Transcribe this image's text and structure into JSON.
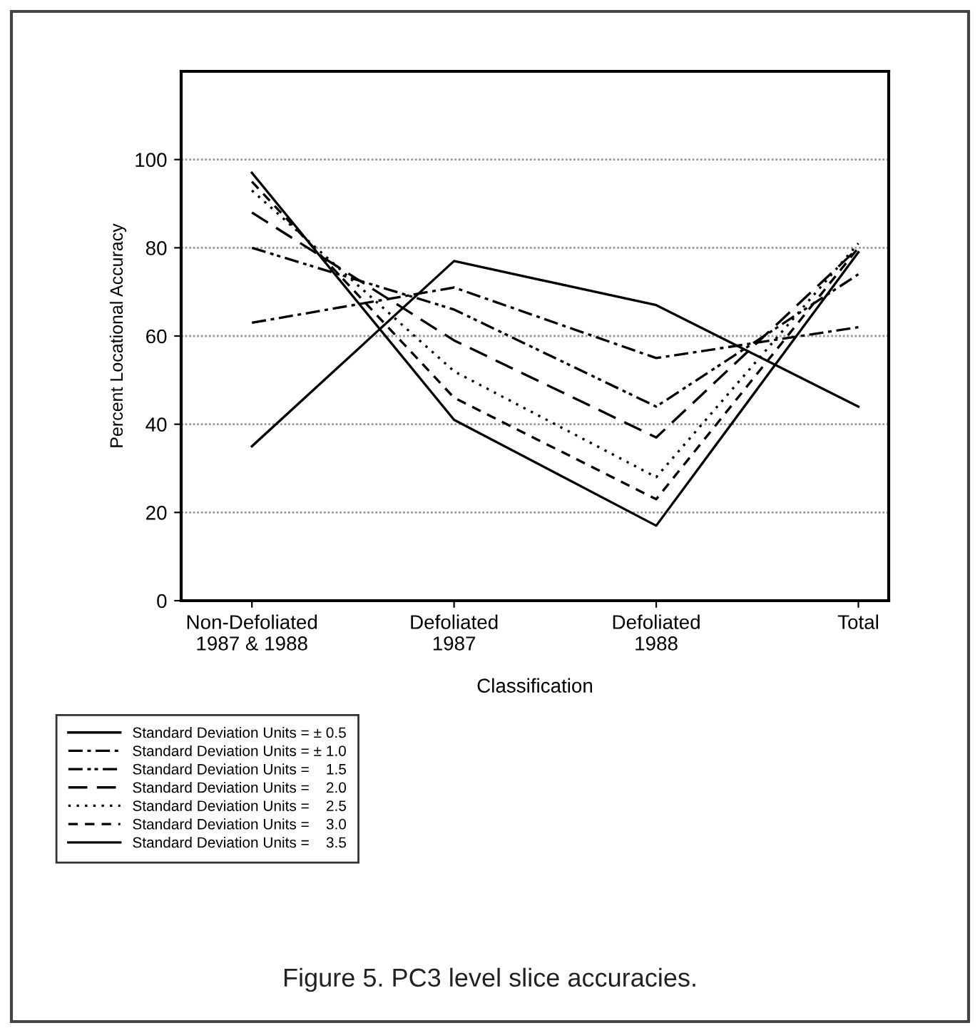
{
  "chart_data": {
    "type": "line",
    "categories": [
      "Non-Defoliated\n1987 & 1988",
      "Defoliated\n1987",
      "Defoliated\n1988",
      "Total"
    ],
    "xlabel": "Classification",
    "ylabel": "Percent Locational Accuracy",
    "ylim": [
      0,
      120
    ],
    "yticks": [
      0,
      20,
      40,
      60,
      80,
      100
    ],
    "grid": "y",
    "legend": "bottom left",
    "marker": "none",
    "annotations": [
      "Figure 5. PC3 level slice accuracies."
    ],
    "series": [
      {
        "name": "Standard Deviation Units = ± 0.5",
        "color": "#000000",
        "line_style": "solid",
        "values": [
          35,
          77,
          67,
          44
        ]
      },
      {
        "name": "Standard Deviation Units = ± 1.0",
        "color": "#000000",
        "line_style": "dashdot",
        "values": [
          63,
          71,
          55,
          62
        ]
      },
      {
        "name": "Standard Deviation Units =    1.5",
        "color": "#000000",
        "line_style": "dashdotdot",
        "values": [
          80,
          66,
          44,
          74
        ]
      },
      {
        "name": "Standard Deviation Units =    2.0",
        "color": "#000000",
        "line_style": "dashed",
        "values": [
          88,
          59,
          37,
          80
        ]
      },
      {
        "name": "Standard Deviation Units =    2.5",
        "color": "#000000",
        "line_style": "dotted",
        "values": [
          93,
          52,
          28,
          81
        ]
      },
      {
        "name": "Standard Deviation Units =    3.0",
        "color": "#000000",
        "line_style": "shortdash",
        "values": [
          95,
          46,
          23,
          80
        ]
      },
      {
        "name": "Standard Deviation Units =    3.5",
        "color": "#000000",
        "line_style": "solid",
        "values": [
          97,
          41,
          17,
          79
        ]
      }
    ]
  }
}
